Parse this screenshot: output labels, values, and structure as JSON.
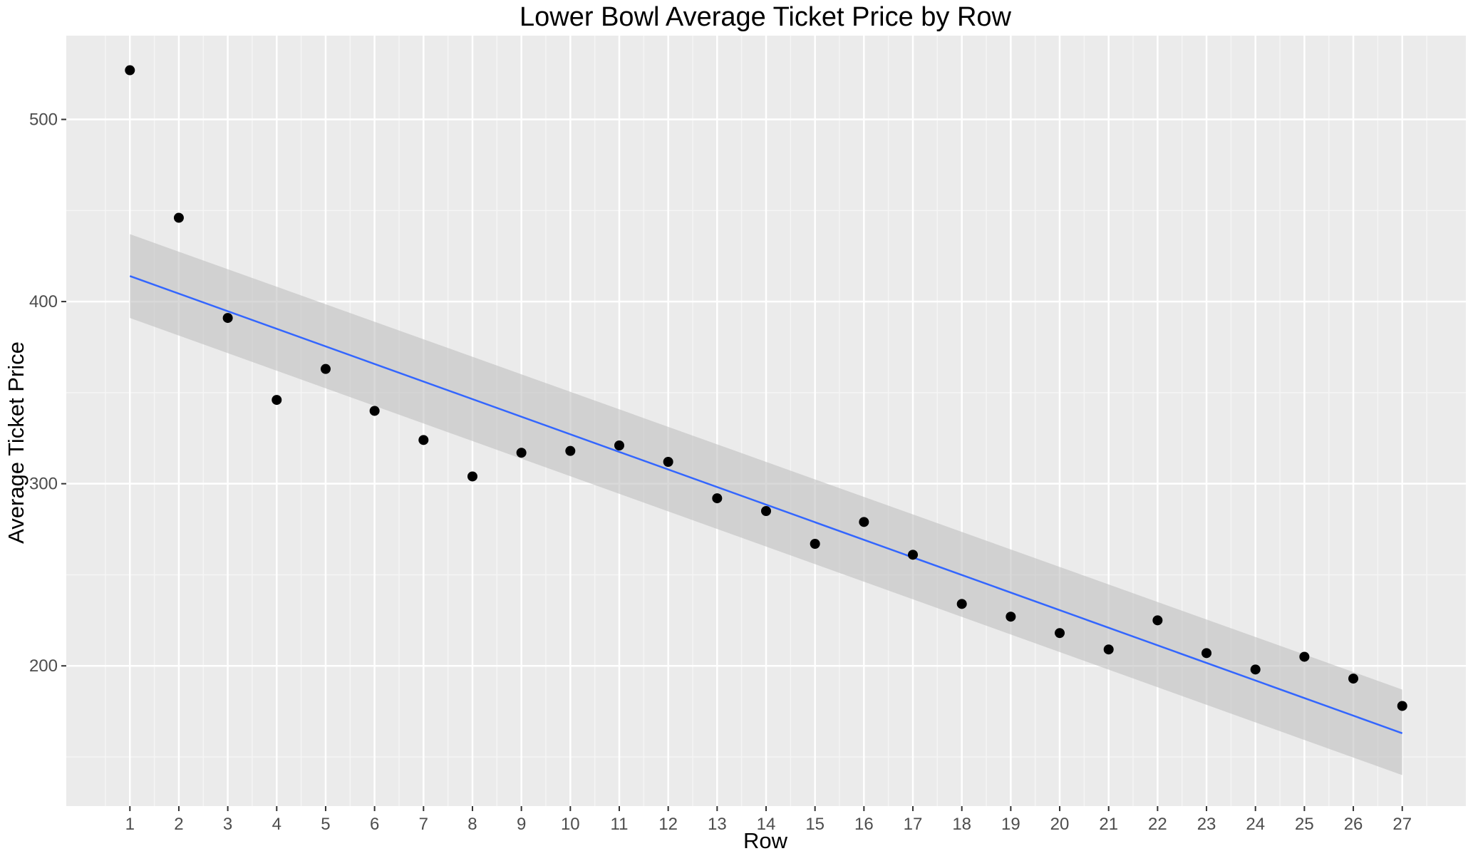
{
  "chart_data": {
    "type": "scatter",
    "title": "Lower Bowl Average Ticket Price by Row",
    "xlabel": "Row",
    "ylabel": "Average Ticket Price",
    "x": [
      1,
      2,
      3,
      4,
      5,
      6,
      7,
      8,
      9,
      10,
      11,
      12,
      13,
      14,
      15,
      16,
      17,
      18,
      19,
      20,
      21,
      22,
      23,
      24,
      25,
      26,
      27
    ],
    "y": [
      527,
      446,
      391,
      346,
      363,
      340,
      324,
      304,
      317,
      318,
      321,
      312,
      292,
      285,
      267,
      279,
      261,
      234,
      227,
      218,
      209,
      225,
      207,
      198,
      205,
      193,
      178
    ],
    "x_ticks": [
      "1",
      "2",
      "3",
      "4",
      "5",
      "6",
      "7",
      "8",
      "9",
      "10",
      "11",
      "12",
      "13",
      "14",
      "15",
      "16",
      "17",
      "18",
      "19",
      "20",
      "21",
      "22",
      "23",
      "24",
      "25",
      "26",
      "27"
    ],
    "y_ticks": [
      "200",
      "300",
      "400",
      "500"
    ],
    "xlim": [
      -0.3,
      28.3
    ],
    "ylim": [
      123,
      546
    ],
    "grid": true,
    "legend": "none",
    "trend_line": {
      "method": "linear",
      "start": [
        1,
        414
      ],
      "end": [
        27,
        163
      ],
      "confidence_band": {
        "lower": [
          391,
          140
        ],
        "upper": [
          437,
          187
        ]
      }
    },
    "colors": {
      "panel": "#ebebeb",
      "grid_major": "#ffffff",
      "grid_minor": "#f5f5f5",
      "points": "#000000",
      "line": "#3366ff",
      "band": "#bfbfbf"
    }
  }
}
